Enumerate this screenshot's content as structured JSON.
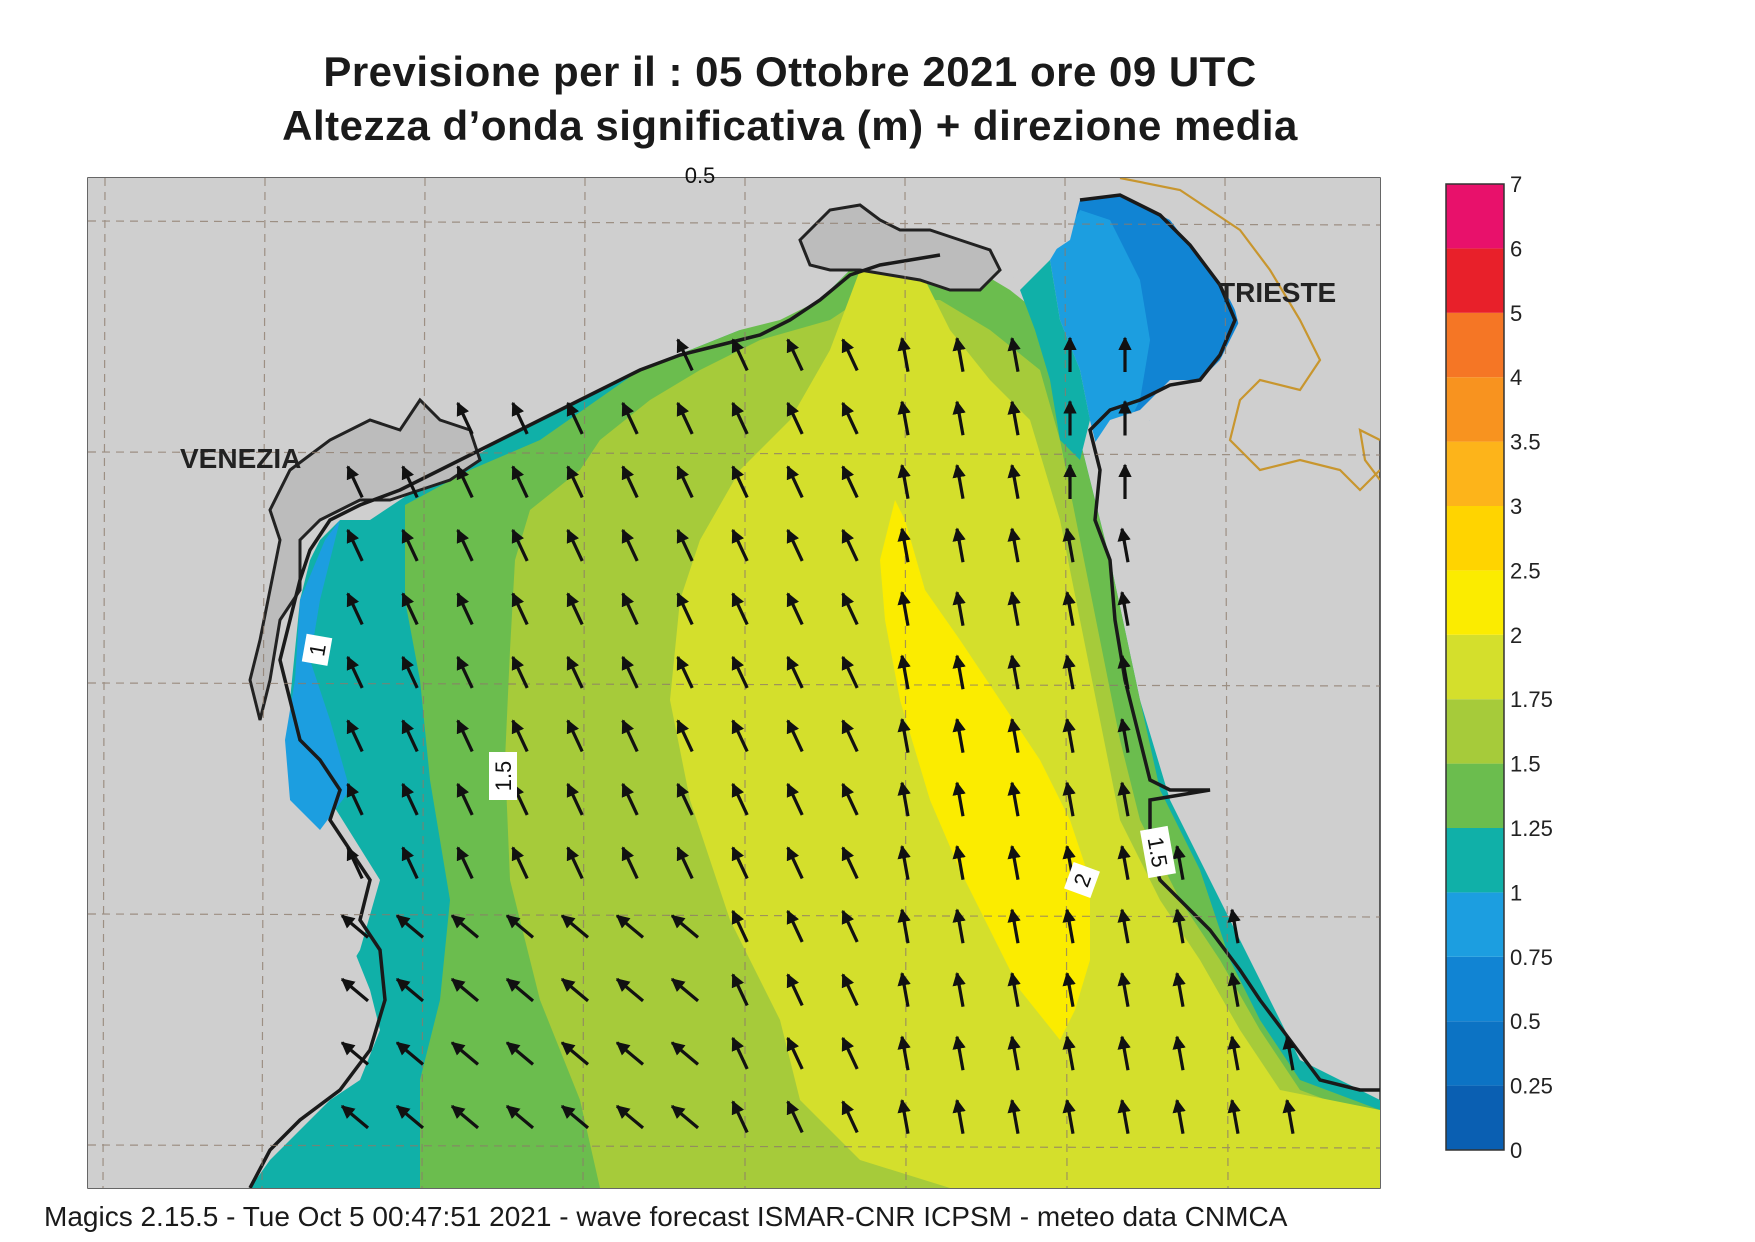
{
  "title": {
    "line1": "Previsione per il  :  05  Ottobre  2021   ore 09 UTC",
    "line2": "Altezza d’onda significativa (m) + direzione media"
  },
  "places": {
    "venezia": "VENEZIA",
    "trieste": "TRIESTE"
  },
  "contour_labels": {
    "top": "0.5",
    "west_coast": "1",
    "west_mid": "1.5",
    "center": "2",
    "east": "1.5"
  },
  "legend": {
    "ticks": [
      "0",
      "0.25",
      "0.5",
      "0.75",
      "1",
      "1.25",
      "1.5",
      "1.75",
      "2",
      "2.5",
      "3",
      "3.5",
      "4",
      "5",
      "6",
      "7"
    ],
    "colors": [
      "#0a5fb2",
      "#0c73c4",
      "#1184d3",
      "#1c9ee0",
      "#10b0a8",
      "#6bbd4e",
      "#a6cb3a",
      "#d4df2c",
      "#fbec00",
      "#ffd400",
      "#fdb41a",
      "#f8931f",
      "#f57625",
      "#e8202a",
      "#e8116b"
    ]
  },
  "wave_direction": "NNW",
  "footer": "Magics 2.15.5 - Tue Oct  5 00:47:51 2021 - wave forecast  ISMAR-CNR  ICPSM - meteo data   CNMCA"
}
